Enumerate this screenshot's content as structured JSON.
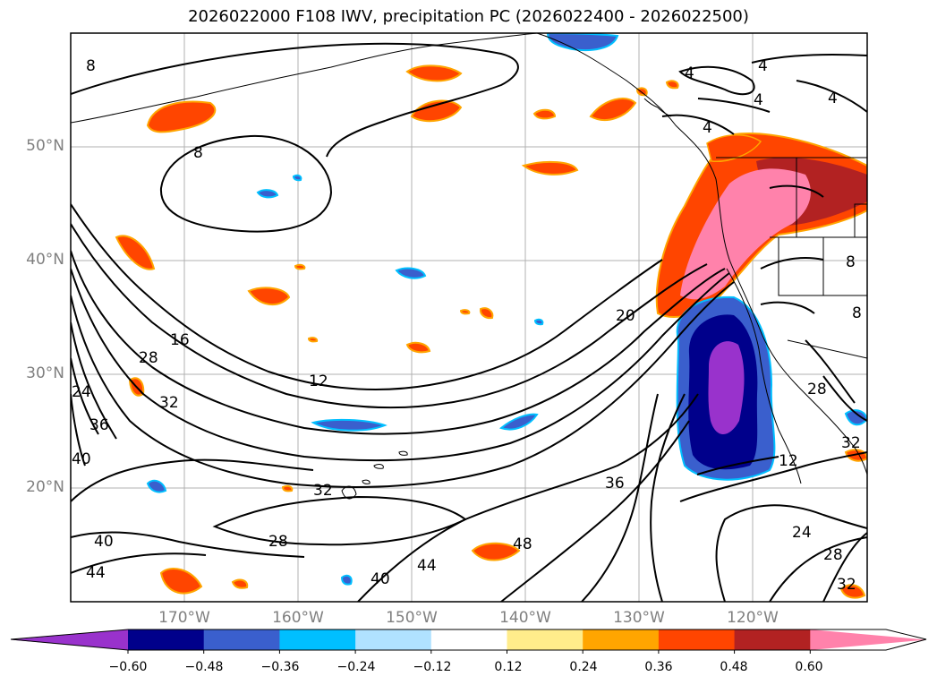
{
  "title": "2026022000 F108 IWV, precipitation PC (2026022400 - 2026022500)",
  "map": {
    "extent": {
      "lon_min": -180,
      "lon_max": -110,
      "lat_min": 10,
      "lat_max": 60
    },
    "grid": true,
    "lat_labels": [
      "50°N",
      "40°N",
      "30°N",
      "20°N"
    ],
    "lon_labels": [
      "170°W",
      "160°W",
      "150°W",
      "140°W",
      "130°W",
      "120°W"
    ],
    "iwv_contour_labels": [
      "8",
      "8",
      "4",
      "4",
      "4",
      "4",
      "4",
      "16",
      "28",
      "32",
      "36",
      "40",
      "40",
      "44",
      "12",
      "20",
      "24",
      "28",
      "32",
      "36",
      "40",
      "44",
      "48",
      "28",
      "32",
      "12",
      "24",
      "28",
      "32",
      "8",
      "8"
    ]
  },
  "colorbar": {
    "tick_labels": [
      "−0.60",
      "−0.48",
      "−0.36",
      "−0.24",
      "−0.12",
      "0.12",
      "0.24",
      "0.36",
      "0.48",
      "0.60"
    ],
    "colors": [
      "#9932cc",
      "#00008b",
      "#3a5fcd",
      "#00bfff",
      "#b0e2ff",
      "#ffffff",
      "#ffec8b",
      "#ffa500",
      "#ff4500",
      "#b22222",
      "#ff82ab"
    ]
  }
}
